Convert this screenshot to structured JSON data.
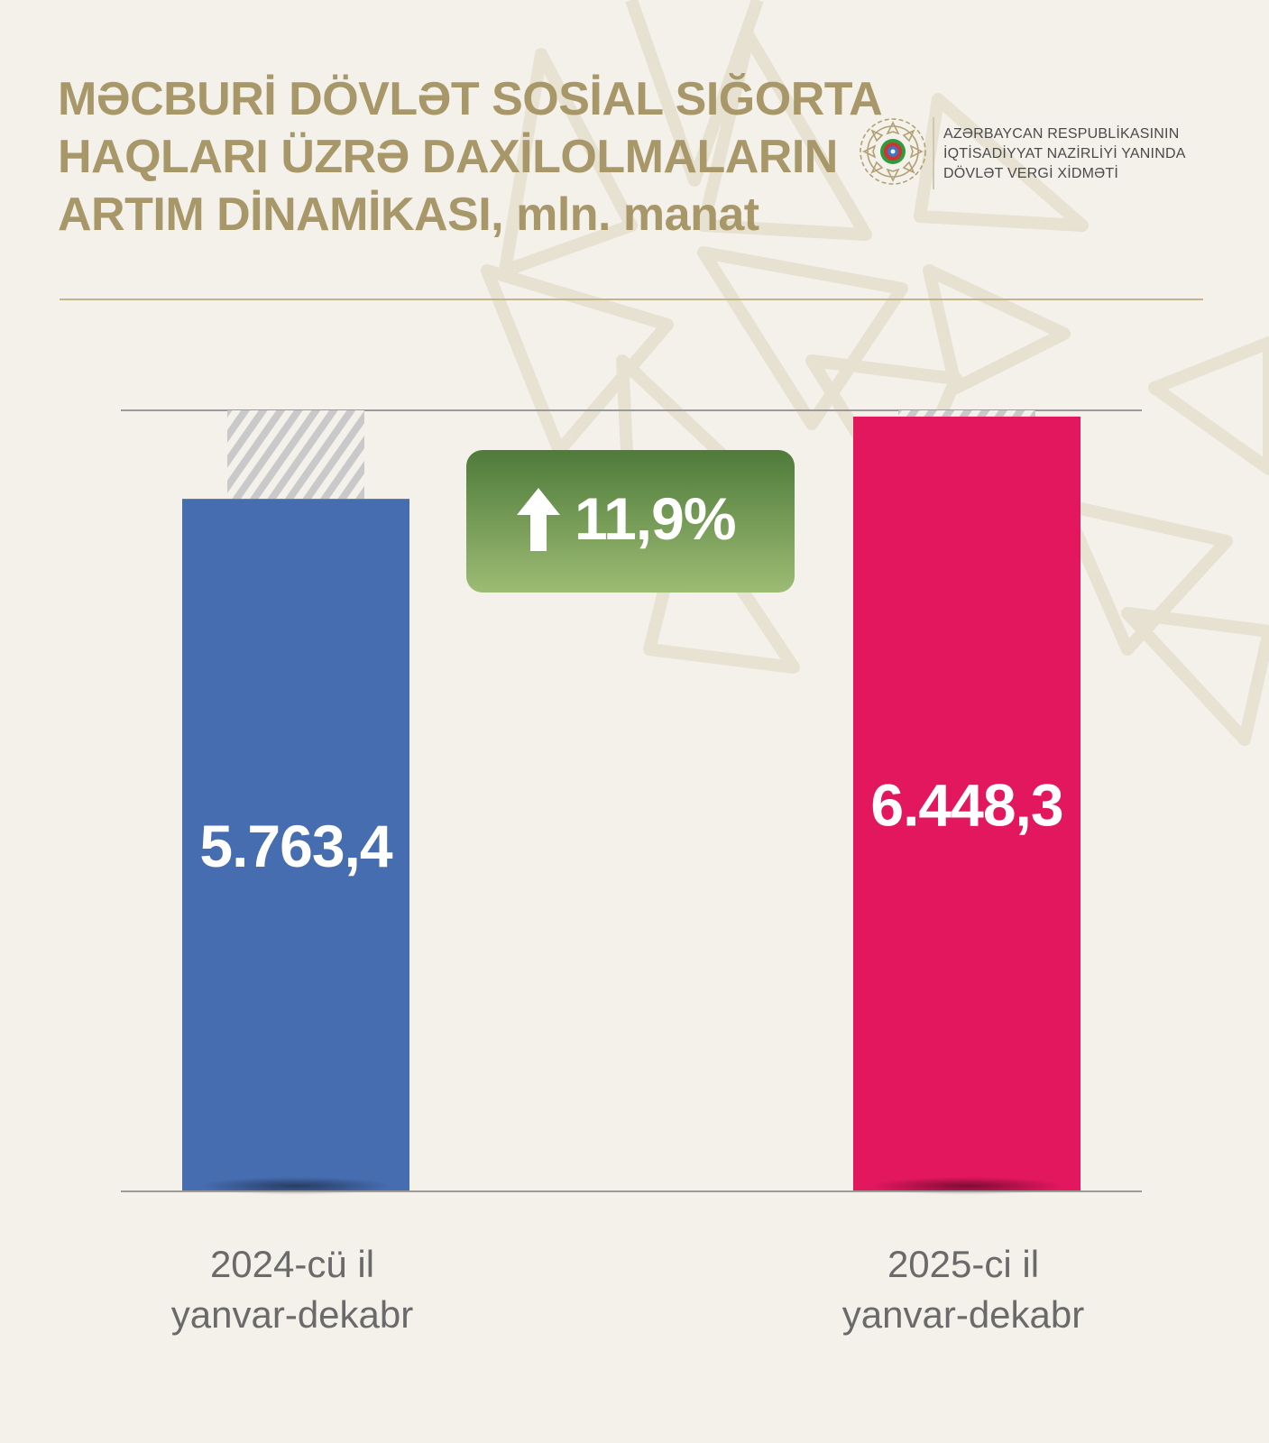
{
  "title_lines": [
    "MƏCBURİ DÖVLƏT SOSİAL SIĞORTA",
    "HAQLARI ÜZRƏ DAXİLOLMALARIN",
    "ARTIM DİNAMİKASI, mln. manat"
  ],
  "brand": {
    "lines": [
      "AZƏRBAYCAN RESPUBLİKASININ",
      "İQTİSADİYYAT NAZİRLİYİ YANINDA",
      "DÖVLƏT VERGİ XİDMƏTİ"
    ],
    "emblem_icon": "state-emblem-icon"
  },
  "growth_badge": {
    "icon": "arrow-up-icon",
    "text": "11,9%"
  },
  "colors": {
    "background": "#f3f1ea",
    "title": "#a89768",
    "bar_2024": "#476db1",
    "bar_2025": "#e2175e",
    "badge_top": "#4f7a3a",
    "badge_bottom": "#9cbc74",
    "axis": "#9a9a9a"
  },
  "chart_data": {
    "type": "bar",
    "categories": [
      [
        "2024-cü il",
        "yanvar-dekabr"
      ],
      [
        "2025-ci il",
        "yanvar-dekabr"
      ]
    ],
    "values": [
      5763.4,
      6448.3
    ],
    "value_labels": [
      "5.763,4",
      "6.448,3"
    ],
    "bar_colors": [
      "#476db1",
      "#e2175e"
    ],
    "ylim": [
      0,
      6500
    ],
    "growth_percent": 11.9
  }
}
